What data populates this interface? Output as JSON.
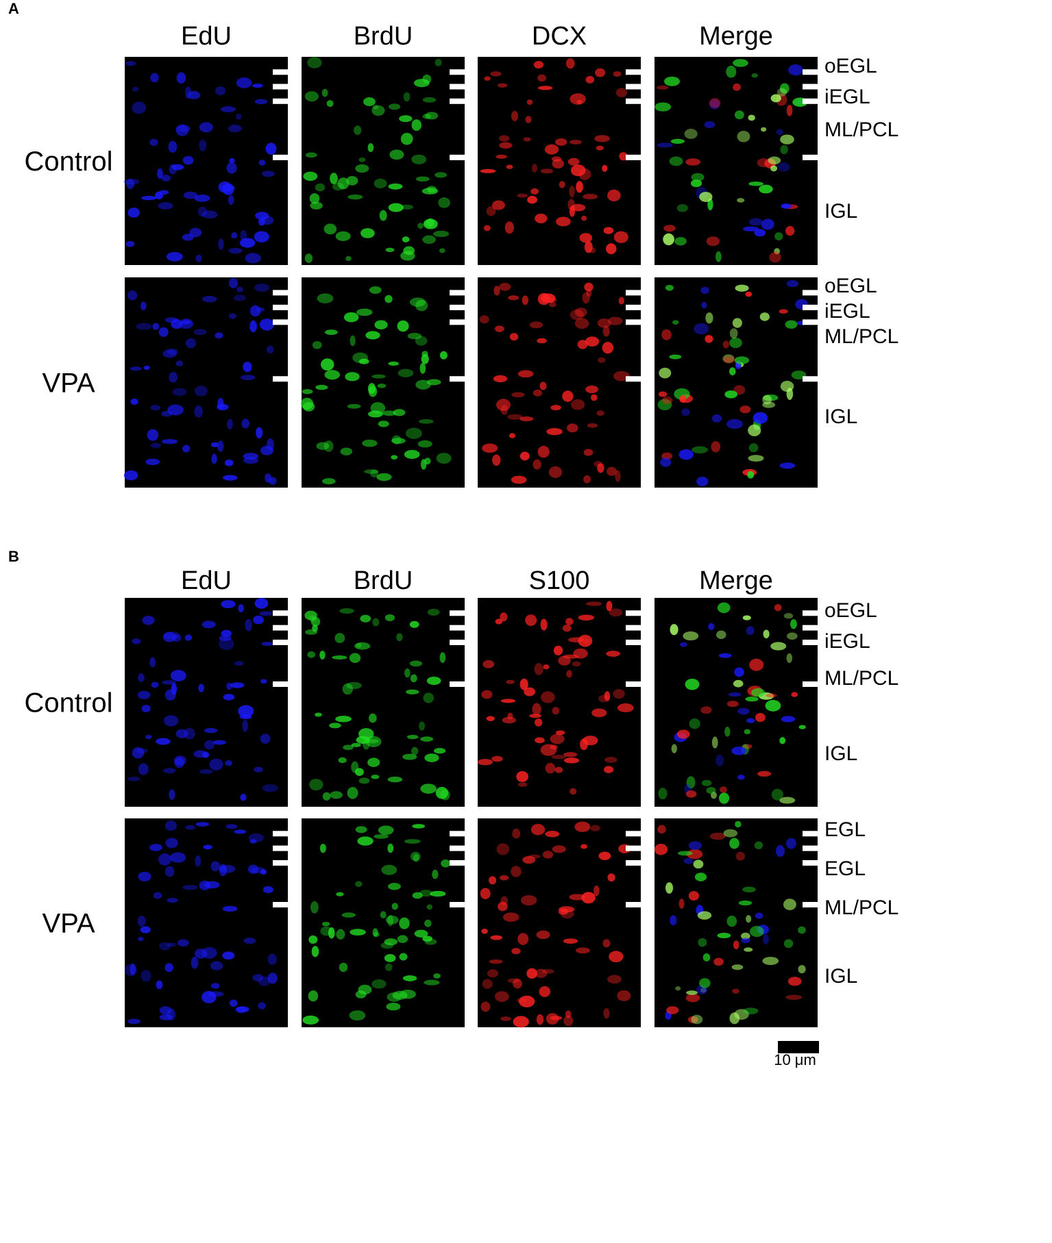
{
  "panels": [
    {
      "label": "A",
      "columns": [
        "EdU",
        "BrdU",
        "DCX",
        "Merge"
      ],
      "rows": [
        {
          "label": "Control",
          "layers": [
            "oEGL",
            "iEGL",
            "ML/PCL",
            "IGL"
          ]
        },
        {
          "label": "VPA",
          "layers": [
            "oEGL",
            "iEGL",
            "ML/PCL",
            "IGL"
          ]
        }
      ]
    },
    {
      "label": "B",
      "columns": [
        "EdU",
        "BrdU",
        "S100",
        "Merge"
      ],
      "rows": [
        {
          "label": "Control",
          "layers": [
            "oEGL",
            "iEGL",
            "ML/PCL",
            "IGL"
          ]
        },
        {
          "label": "VPA",
          "layers": [
            "EGL",
            "EGL",
            "ML/PCL",
            "IGL"
          ]
        }
      ]
    }
  ],
  "scale_bar": "10 μm"
}
